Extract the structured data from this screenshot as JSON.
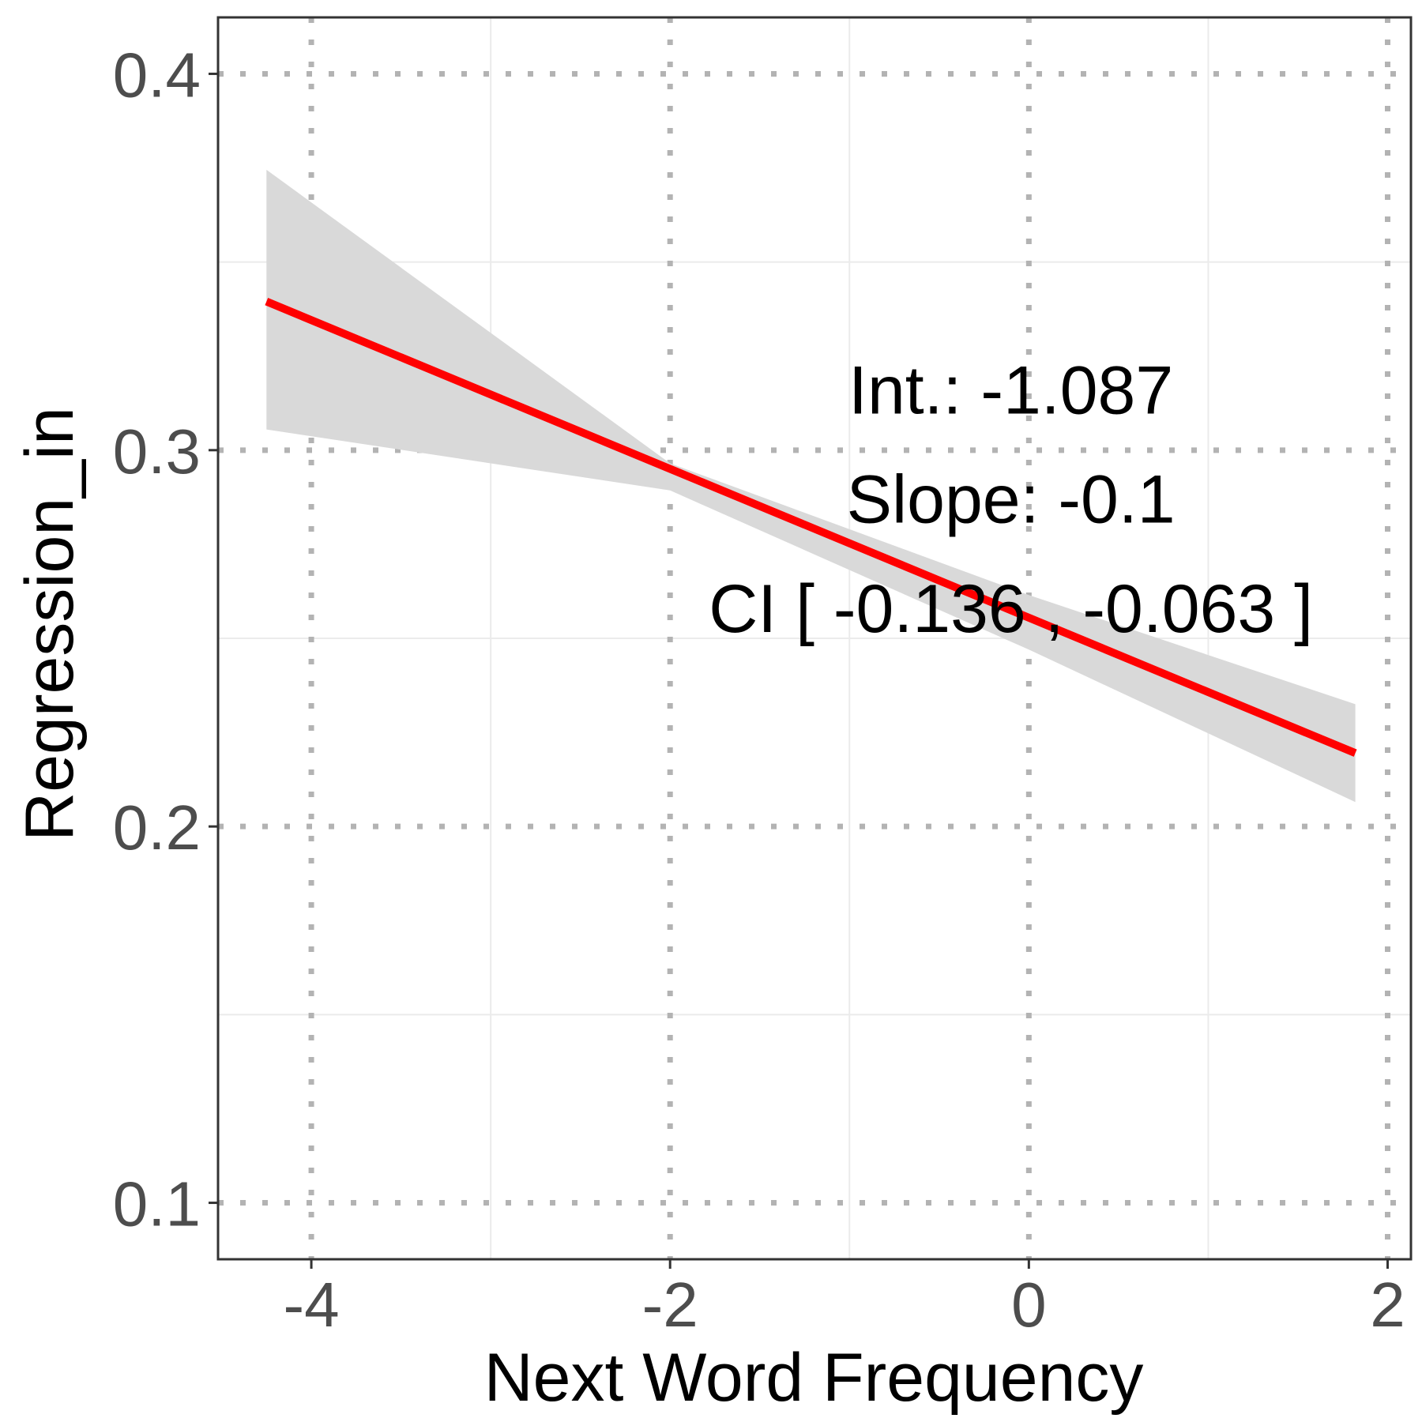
{
  "chart_data": {
    "type": "line",
    "title": "",
    "xlabel": "Next Word Frequency",
    "ylabel": "Regression_in",
    "xlim": [
      -4.52,
      2.13
    ],
    "ylim": [
      0.085,
      0.415
    ],
    "x_ticks": [
      {
        "value": -4,
        "label": "-4"
      },
      {
        "value": -2,
        "label": "-2"
      },
      {
        "value": 0,
        "label": "0"
      },
      {
        "value": 2,
        "label": "2"
      }
    ],
    "y_ticks": [
      {
        "value": 0.1,
        "label": "0.1"
      },
      {
        "value": 0.2,
        "label": "0.2"
      },
      {
        "value": 0.3,
        "label": "0.3"
      },
      {
        "value": 0.4,
        "label": "0.4"
      }
    ],
    "x_minor_grid": [
      -3,
      -1,
      1
    ],
    "y_minor_grid": [
      0.15,
      0.25,
      0.35
    ],
    "grid": true,
    "major_grid_style": "dotted",
    "series": [
      {
        "x": [
          -4.25,
          1.82
        ],
        "y": [
          0.3395,
          0.2195
        ],
        "color": "#ff0000",
        "ci_band": {
          "x": [
            -4.25,
            -2.0,
            0.0,
            1.82
          ],
          "lower": [
            0.3055,
            0.2893,
            0.247,
            0.2065
          ],
          "upper": [
            0.3745,
            0.2965,
            0.2615,
            0.2325
          ],
          "color": "#d9d9d9"
        }
      }
    ],
    "annotations": [
      {
        "text": "Int.: -1.087",
        "x": -0.1,
        "y": 0.316
      },
      {
        "text": "Slope: -0.1",
        "x": -0.1,
        "y": 0.287
      },
      {
        "text": "CI [ -0.136 , -0.063 ]",
        "x": -0.1,
        "y": 0.258
      }
    ]
  }
}
